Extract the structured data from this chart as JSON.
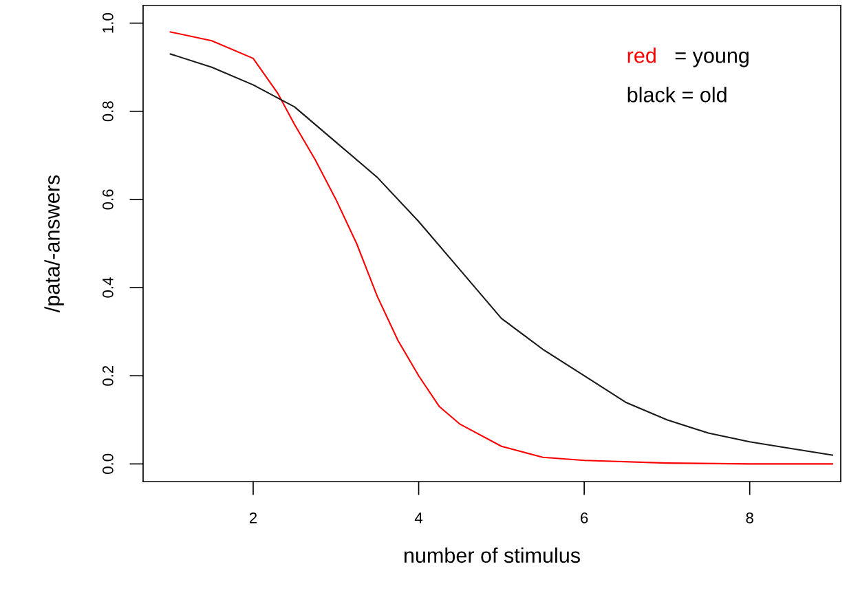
{
  "chart_data": {
    "type": "line",
    "xlabel": "number of stimulus",
    "ylabel": "/pata/-answers",
    "xlim": [
      0.67,
      9.1
    ],
    "xticks": [
      2,
      4,
      6,
      8
    ],
    "ylim": [
      -0.04,
      1.04
    ],
    "yticks": [
      {
        "value": 0,
        "label": "0.0"
      },
      {
        "value": 0.2,
        "label": "0.2"
      },
      {
        "value": 0.4,
        "label": "0.4"
      },
      {
        "value": 0.6,
        "label": "0.6"
      },
      {
        "value": 0.8,
        "label": "0.8"
      },
      {
        "value": 1,
        "label": "1.0"
      }
    ],
    "grid": false,
    "marker": "none",
    "line_style": "solid",
    "annotations": [
      "red = young",
      "black = old"
    ],
    "series": [
      {
        "color": "#ff0000",
        "x": [
          1,
          1.5,
          2,
          2.3,
          2.5,
          2.75,
          3,
          3.25,
          3.5,
          3.75,
          4,
          4.25,
          4.5,
          5,
          5.5,
          6,
          7,
          8,
          9
        ],
        "values": [
          0.98,
          0.96,
          0.92,
          0.84,
          0.77,
          0.69,
          0.6,
          0.5,
          0.38,
          0.28,
          0.2,
          0.13,
          0.09,
          0.04,
          0.015,
          0.008,
          0.002,
          0,
          0
        ]
      },
      {
        "color": "#1a1a1a",
        "x": [
          1,
          1.5,
          2,
          2.3,
          2.5,
          3,
          3.5,
          4,
          4.5,
          5,
          5.5,
          6,
          6.5,
          7,
          7.5,
          8,
          8.5,
          9
        ],
        "values": [
          0.93,
          0.9,
          0.86,
          0.83,
          0.81,
          0.73,
          0.65,
          0.55,
          0.44,
          0.33,
          0.26,
          0.2,
          0.14,
          0.1,
          0.07,
          0.05,
          0.035,
          0.02
        ]
      }
    ]
  }
}
